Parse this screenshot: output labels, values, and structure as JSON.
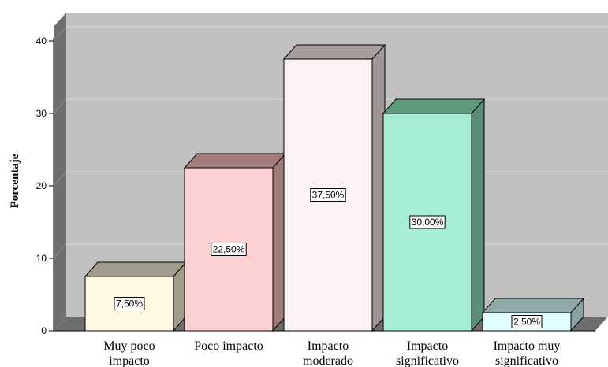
{
  "chart_data": {
    "type": "bar",
    "style": "3d",
    "ylabel": "Porcentaje",
    "xlabel": "",
    "ylim": [
      0,
      40
    ],
    "yticks": [
      0,
      10,
      20,
      30,
      40
    ],
    "grid": true,
    "categories": [
      [
        "Muy poco",
        "impacto"
      ],
      [
        "Poco impacto"
      ],
      [
        "Impacto",
        "moderado"
      ],
      [
        "Impacto",
        "significativo"
      ],
      [
        "Impacto muy",
        "significativo"
      ]
    ],
    "values": [
      7.5,
      22.5,
      37.5,
      30.0,
      2.5
    ],
    "data_labels": [
      "7,50%",
      "22,50%",
      "37,50%",
      "30,00%",
      "2,50%"
    ],
    "colors": {
      "front": [
        "#fef8e2",
        "#fdd1d1",
        "#fbf3f3",
        "#a8eed4",
        "#e1fdfd"
      ],
      "top": [
        "#a39b8a",
        "#a37b7b",
        "#a79b9b",
        "#5f9a7f",
        "#8fa9a9"
      ],
      "side": [
        "#a29c8a",
        "#a17a7a",
        "#9f9595",
        "#5a8e78",
        "#8aa2a2"
      ],
      "plot_back": "#c0c0c0",
      "plot_wall": "#6e6e6e",
      "gridline": "#d9d9d9"
    }
  }
}
